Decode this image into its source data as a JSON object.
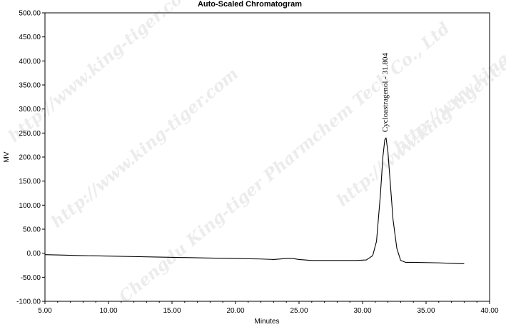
{
  "watermark_text": [
    "http://www.king-tiger.com",
    "Chengdu King-tiger Pharmchem Tech Co., Ltd"
  ],
  "chart_data": {
    "type": "line",
    "title": "Auto-Scaled Chromatogram",
    "xlabel": "Minutes",
    "ylabel": "MV",
    "xlim": [
      5.0,
      40.0
    ],
    "ylim": [
      -100.0,
      500.0
    ],
    "xticks": [
      "5.00",
      "10.00",
      "15.00",
      "20.00",
      "25.00",
      "30.00",
      "35.00",
      "40.00"
    ],
    "yticks": [
      "500.00",
      "450.00",
      "400.00",
      "350.00",
      "300.00",
      "250.00",
      "200.00",
      "150.00",
      "100.00",
      "50.00",
      "0.00",
      "-50.00",
      "-100.00"
    ],
    "grid": false,
    "series": [
      {
        "x": [
          5.0,
          6.5,
          8.0,
          10.0,
          12.0,
          14.0,
          16.0,
          18.0,
          20.0,
          22.0,
          23.0,
          24.0,
          24.5,
          25.0,
          26.0,
          28.0,
          29.5,
          30.3,
          30.8,
          31.1,
          31.4,
          31.6,
          31.75,
          31.85,
          32.0,
          32.2,
          32.4,
          32.7,
          33.0,
          33.4,
          34.0,
          36.0,
          38.0
        ],
        "y": [
          -3,
          -4,
          -5,
          -6,
          -7,
          -8,
          -9,
          -10,
          -11,
          -12,
          -13,
          -11,
          -11,
          -13,
          -15,
          -15,
          -15,
          -14,
          -5,
          25,
          120,
          200,
          236,
          240,
          210,
          140,
          70,
          10,
          -15,
          -19,
          -19,
          -20,
          -22
        ]
      }
    ],
    "annotations": [
      {
        "text": "Cycloastragenol - 31.804",
        "x": 31.804,
        "y": 240
      }
    ]
  }
}
